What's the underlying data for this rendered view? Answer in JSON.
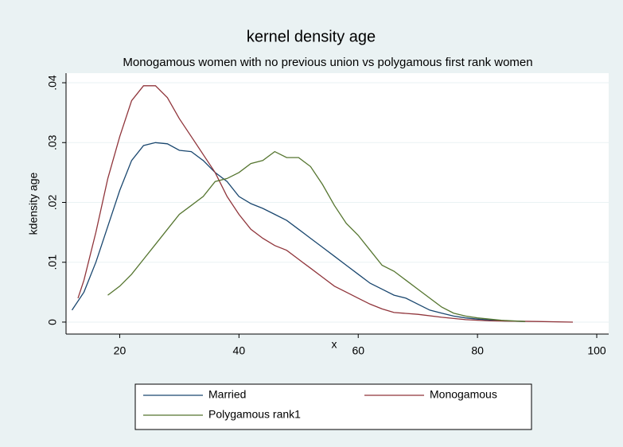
{
  "chart_data": {
    "type": "line",
    "title": "kernel density age",
    "subtitle": "Monogamous women with no previous union vs polygamous first rank women",
    "x_label": "x",
    "y_label": "kdensity age",
    "xlim": [
      11,
      102
    ],
    "ylim": [
      -0.002,
      0.0416
    ],
    "xticks": [
      20,
      40,
      60,
      80,
      100
    ],
    "yticks": [
      0,
      {
        "value": 0.01,
        "label": ".01"
      },
      {
        "value": 0.02,
        "label": ".02"
      },
      {
        "value": 0.03,
        "label": ".03"
      },
      {
        "value": 0.04,
        "label": ".04"
      }
    ],
    "grid": true,
    "legend": "bottom",
    "series": [
      {
        "name": "Married",
        "color": "#1a476f",
        "x": [
          12,
          14,
          16,
          18,
          20,
          22,
          24,
          26,
          28,
          30,
          32,
          34,
          36,
          38,
          40,
          42,
          44,
          46,
          48,
          50,
          52,
          54,
          56,
          58,
          60,
          62,
          64,
          66,
          68,
          70,
          72,
          74,
          76,
          78,
          80,
          84,
          88
        ],
        "values": [
          0.002,
          0.005,
          0.01,
          0.016,
          0.022,
          0.027,
          0.0295,
          0.03,
          0.0298,
          0.0287,
          0.0285,
          0.027,
          0.025,
          0.0235,
          0.021,
          0.0198,
          0.019,
          0.018,
          0.017,
          0.0155,
          0.014,
          0.0125,
          0.011,
          0.0095,
          0.008,
          0.0065,
          0.0055,
          0.0045,
          0.004,
          0.003,
          0.002,
          0.0015,
          0.001,
          0.0007,
          0.0005,
          0.0002,
          0.0001
        ]
      },
      {
        "name": "Monogamous",
        "color": "#90353b",
        "x": [
          13,
          14,
          16,
          18,
          20,
          22,
          24,
          26,
          28,
          30,
          32,
          34,
          36,
          38,
          40,
          42,
          44,
          46,
          48,
          50,
          52,
          54,
          56,
          58,
          60,
          62,
          64,
          66,
          70,
          74,
          78,
          82,
          90,
          96
        ],
        "values": [
          0.004,
          0.007,
          0.015,
          0.024,
          0.031,
          0.037,
          0.0395,
          0.0395,
          0.0375,
          0.034,
          0.031,
          0.028,
          0.025,
          0.021,
          0.018,
          0.0155,
          0.014,
          0.0128,
          0.012,
          0.0105,
          0.009,
          0.0075,
          0.006,
          0.005,
          0.004,
          0.003,
          0.0022,
          0.0016,
          0.0013,
          0.0008,
          0.0004,
          0.0002,
          0.0001,
          0
        ]
      },
      {
        "name": "Polygamous rank1",
        "color": "#55752f",
        "x": [
          18,
          20,
          22,
          24,
          26,
          28,
          30,
          32,
          34,
          36,
          38,
          40,
          42,
          44,
          46,
          48,
          50,
          52,
          54,
          56,
          58,
          60,
          62,
          64,
          66,
          68,
          70,
          72,
          74,
          76,
          78,
          80,
          84,
          88
        ],
        "values": [
          0.0045,
          0.006,
          0.008,
          0.0105,
          0.013,
          0.0155,
          0.018,
          0.0195,
          0.021,
          0.0235,
          0.024,
          0.025,
          0.0265,
          0.027,
          0.0285,
          0.0275,
          0.0275,
          0.026,
          0.023,
          0.0195,
          0.0165,
          0.0145,
          0.012,
          0.0095,
          0.0085,
          0.007,
          0.0055,
          0.004,
          0.0025,
          0.0015,
          0.001,
          0.0007,
          0.0003,
          0.0001
        ]
      }
    ]
  }
}
